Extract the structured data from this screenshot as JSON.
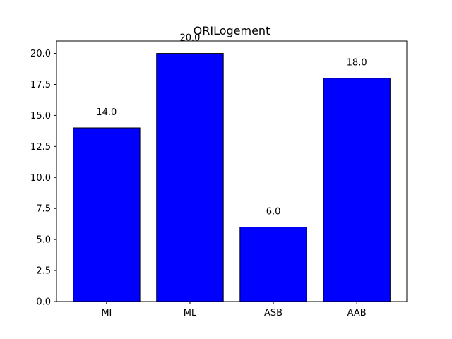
{
  "chart_data": {
    "type": "bar",
    "title": "ORILogement",
    "xlabel": "",
    "ylabel": "",
    "categories": [
      "MI",
      "ML",
      "ASB",
      "AAB"
    ],
    "values": [
      14.0,
      20.0,
      6.0,
      18.0
    ],
    "value_labels": [
      "14.0",
      "20.0",
      "6.0",
      "18.0"
    ],
    "ylim": [
      0,
      21
    ],
    "yticks": [
      0.0,
      2.5,
      5.0,
      7.5,
      10.0,
      12.5,
      15.0,
      17.5,
      20.0
    ],
    "ytick_labels": [
      "0.0",
      "2.5",
      "5.0",
      "7.5",
      "10.0",
      "12.5",
      "15.0",
      "17.5",
      "20.0"
    ],
    "grid": false,
    "colors": {
      "bar_fill": "#0000ff",
      "bar_edge": "#000000",
      "axes": "#000000",
      "background": "#ffffff"
    }
  }
}
